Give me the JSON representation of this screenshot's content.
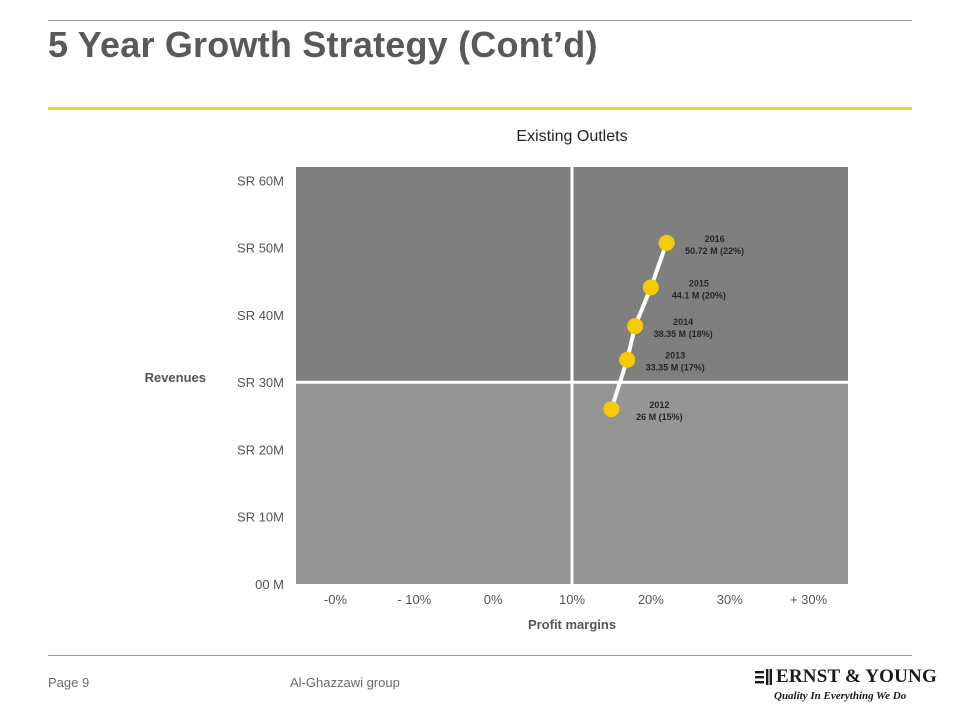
{
  "slide": {
    "title": "5 Year Growth Strategy (Cont’d)"
  },
  "footer": {
    "page": "Page 9",
    "organization": "Al-Ghazzawi group"
  },
  "logo": {
    "name": "ERNST & YOUNG",
    "tagline": "Quality In Everything We Do"
  },
  "colors": {
    "accent_yellow": "#f5d327",
    "upper_quadrant": "#7f7f7f",
    "lower_quadrant": "#959595",
    "marker": "#f5cc00",
    "path_line": "#ffffff"
  },
  "chart_data": {
    "type": "scatter",
    "title": "Existing Outlets",
    "xlabel": "Profit margins",
    "ylabel": "Revenues",
    "x_tick_labels": [
      "-0%",
      "- 10%",
      "0%",
      "10%",
      "20%",
      "30%",
      "+ 30%"
    ],
    "y_tick_labels": [
      "00 M",
      "SR 10M",
      "SR 20M",
      "SR 30M",
      "SR 40M",
      "SR 50M",
      "SR 60M"
    ],
    "ylim": [
      0,
      62
    ],
    "x_quadrant_divider": "10%",
    "y_quadrant_divider": 30,
    "series": [
      {
        "points": [
          {
            "year": "2012",
            "label": "26 M (15%)",
            "revenue": 26,
            "margin": 15
          },
          {
            "year": "2013",
            "label": "33.35 M (17%)",
            "revenue": 33.35,
            "margin": 17
          },
          {
            "year": "2014",
            "label": "38.35 M (18%)",
            "revenue": 38.35,
            "margin": 18
          },
          {
            "year": "2015",
            "label": "44.1 M (20%)",
            "revenue": 44.1,
            "margin": 20
          },
          {
            "year": "2016",
            "label": "50.72 M (22%)",
            "revenue": 50.72,
            "margin": 22
          }
        ]
      }
    ]
  }
}
